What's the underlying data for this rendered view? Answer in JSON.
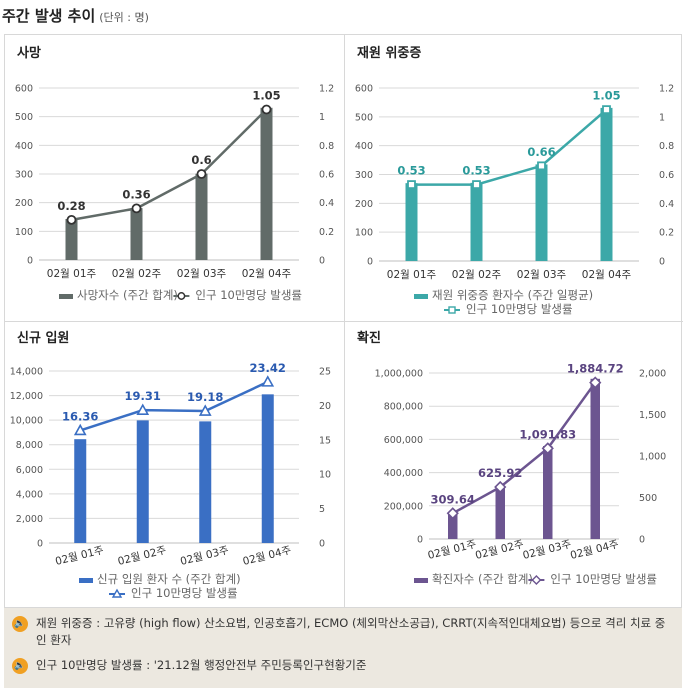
{
  "page": {
    "title": "주간 발생 추이",
    "unit": "(단위 : 명)"
  },
  "charts": [
    {
      "id": "deaths",
      "title": "사망",
      "bar_color": "#616b68",
      "line_color": "#616b68",
      "marker": "circle",
      "label_color": "#333333",
      "legend_bar": "사망자수 (주간 합계)",
      "legend_line": "인구 10만명당 발생률",
      "legend_layout": "row",
      "cat_rotate": false
    },
    {
      "id": "severe",
      "title": "재원 위중증",
      "bar_color": "#3ca8a8",
      "line_color": "#3ca8a8",
      "marker": "square",
      "label_color": "#2a9a9a",
      "legend_bar": "재원 위중증 환자수 (주간 일평균)",
      "legend_line": "인구 10만명당 발생률",
      "legend_layout": "stack",
      "cat_rotate": false
    },
    {
      "id": "admissions",
      "title": "신규 입원",
      "bar_color": "#3a6fc4",
      "line_color": "#3a6fc4",
      "marker": "triangle",
      "label_color": "#2a5ab0",
      "legend_bar": "신규 입원 환자 수 (주간 합계)",
      "legend_line": "인구 10만명당 발생률",
      "legend_layout": "stack",
      "cat_rotate": true
    },
    {
      "id": "confirmed",
      "title": "확진",
      "bar_color": "#6c5590",
      "line_color": "#6c5590",
      "marker": "diamond",
      "label_color": "#5a4480",
      "legend_bar": "확진자수 (주간 합계)",
      "legend_line": "인구 10만명당 발생률",
      "legend_layout": "row",
      "cat_rotate": true
    }
  ],
  "chart_data": [
    {
      "type": "bar",
      "title": "사망",
      "categories": [
        "02월 01주",
        "02월 02주",
        "02월 03주",
        "02월 04주"
      ],
      "series": [
        {
          "name": "사망자수 (주간 합계)",
          "type": "bar",
          "axis": "left",
          "values": [
            143,
            181,
            301,
            531
          ]
        },
        {
          "name": "인구 10만명당 발생률",
          "type": "line",
          "axis": "right",
          "values": [
            0.28,
            0.36,
            0.6,
            1.05
          ],
          "labels": [
            "0.28",
            "0.36",
            "0.6",
            "1.05"
          ]
        }
      ],
      "y_left": {
        "min": 0,
        "max": 600,
        "ticks": [
          0,
          100,
          200,
          300,
          400,
          500,
          600
        ],
        "tick_labels": [
          "0",
          "100",
          "200",
          "300",
          "400",
          "500",
          "600"
        ]
      },
      "y_right": {
        "min": 0,
        "max": 1.2,
        "ticks": [
          0,
          0.2,
          0.4,
          0.6,
          0.8,
          1,
          1.2
        ],
        "tick_labels": [
          "0",
          "0.2",
          "0.4",
          "0.6",
          "0.8",
          "1",
          "1.2"
        ]
      }
    },
    {
      "type": "bar",
      "title": "재원 위중증",
      "categories": [
        "02월 01주",
        "02월 02주",
        "02월 03주",
        "02월 04주"
      ],
      "series": [
        {
          "name": "재원 위중증 환자수 (주간 일평균)",
          "type": "bar",
          "axis": "left",
          "values": [
            270,
            271,
            335,
            531
          ]
        },
        {
          "name": "인구 10만명당 발생률",
          "type": "line",
          "axis": "right",
          "values": [
            0.53,
            0.53,
            0.66,
            1.05
          ],
          "labels": [
            "0.53",
            "0.53",
            "0.66",
            "1.05"
          ]
        }
      ],
      "y_left": {
        "min": 0,
        "max": 600,
        "ticks": [
          0,
          100,
          200,
          300,
          400,
          500,
          600
        ],
        "tick_labels": [
          "0",
          "100",
          "200",
          "300",
          "400",
          "500",
          "600"
        ]
      },
      "y_right": {
        "min": 0,
        "max": 1.2,
        "ticks": [
          0,
          0.2,
          0.4,
          0.6,
          0.8,
          1,
          1.2
        ],
        "tick_labels": [
          "0",
          "0.2",
          "0.4",
          "0.6",
          "0.8",
          "1",
          "1.2"
        ]
      }
    },
    {
      "type": "bar",
      "title": "신규 입원",
      "categories": [
        "02월 01주",
        "02월 02주",
        "02월 03주",
        "02월 04주"
      ],
      "series": [
        {
          "name": "신규 입원 환자 수 (주간 합계)",
          "type": "bar",
          "axis": "left",
          "values": [
            8450,
            9980,
            9900,
            12100
          ]
        },
        {
          "name": "인구 10만명당 발생률",
          "type": "line",
          "axis": "right",
          "values": [
            16.36,
            19.31,
            19.18,
            23.42
          ],
          "labels": [
            "16.36",
            "19.31",
            "19.18",
            "23.42"
          ]
        }
      ],
      "y_left": {
        "min": 0,
        "max": 14000,
        "ticks": [
          0,
          2000,
          4000,
          6000,
          8000,
          10000,
          12000,
          14000
        ],
        "tick_labels": [
          "0",
          "2,000",
          "4,000",
          "6,000",
          "8,000",
          "10,000",
          "12,000",
          "14,000"
        ]
      },
      "y_right": {
        "min": 0,
        "max": 25,
        "ticks": [
          0,
          5,
          10,
          15,
          20,
          25
        ],
        "tick_labels": [
          "0",
          "5",
          "10",
          "15",
          "20",
          "25"
        ]
      }
    },
    {
      "type": "bar",
      "title": "확진",
      "categories": [
        "02월 01주",
        "02월 02주",
        "02월 03주",
        "02월 04주"
      ],
      "series": [
        {
          "name": "확진자수 (주간 합계)",
          "type": "bar",
          "axis": "left",
          "values": [
            158000,
            320000,
            560000,
            965000
          ]
        },
        {
          "name": "인구 10만명당 발생률",
          "type": "line",
          "axis": "right",
          "values": [
            309.64,
            625.92,
            1091.83,
            1884.72
          ],
          "labels": [
            "309.64",
            "625.92",
            "1,091.83",
            "1,884.72"
          ]
        }
      ],
      "y_left": {
        "min": 0,
        "max": 1000000,
        "ticks": [
          0,
          200000,
          400000,
          600000,
          800000,
          1000000
        ],
        "tick_labels": [
          "0",
          "200,000",
          "400,000",
          "600,000",
          "800,000",
          "1,000,000"
        ]
      },
      "y_right": {
        "min": 0,
        "max": 2000,
        "ticks": [
          0,
          500,
          1000,
          1500,
          2000
        ],
        "tick_labels": [
          "0",
          "500",
          "1,000",
          "1,500",
          "2,000"
        ]
      }
    }
  ],
  "notes": [
    {
      "icon": "speaker-icon",
      "text": "재원 위중증 : 고유량 (high flow) 산소요법, 인공호흡기, ECMO (체외막산소공급), CRRT(지속적인대체요법) 등으로 격리 치료 중인 환자"
    },
    {
      "icon": "speaker-icon",
      "text": "인구 10만명당 발생률 : '21.12월 행정안전부 주민등록인구현황기준"
    }
  ]
}
